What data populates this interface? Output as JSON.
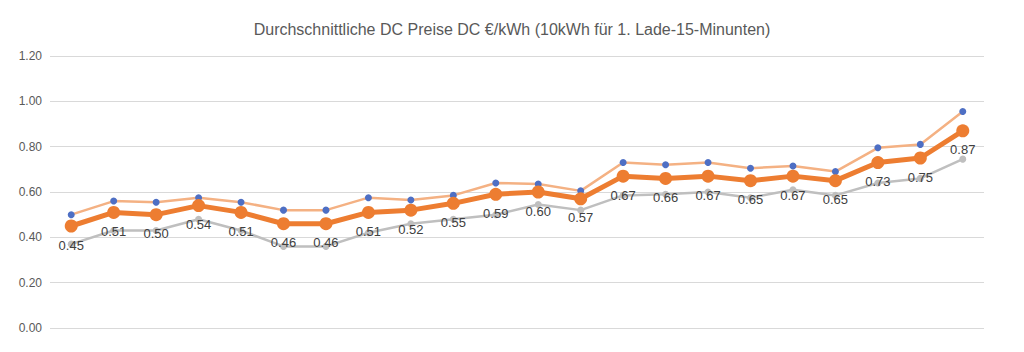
{
  "chart_data": {
    "type": "line",
    "title": "Durchschnittliche DC Preise DC €/kWh (10kWh für 1. Lade-15-Minunten)",
    "categories": [
      null,
      null,
      null,
      null,
      null,
      null,
      null,
      null,
      null,
      null,
      null,
      null,
      null,
      null,
      null,
      null,
      null,
      null,
      null,
      null,
      null,
      null
    ],
    "series": [
      {
        "color": "#f4b183",
        "marker": "circle",
        "line_style": "solid",
        "values": [
          0.5,
          0.56,
          0.555,
          0.575,
          0.555,
          0.52,
          0.52,
          0.575,
          0.565,
          0.585,
          0.64,
          0.635,
          0.605,
          0.73,
          0.72,
          0.73,
          0.705,
          0.715,
          0.69,
          0.795,
          0.81,
          0.955
        ]
      },
      {
        "color": "#bfbfbf",
        "marker": "circle",
        "line_style": "solid",
        "values": [
          0.37,
          0.43,
          0.43,
          0.48,
          0.43,
          0.36,
          0.36,
          0.42,
          0.46,
          0.48,
          0.5,
          0.545,
          0.52,
          0.585,
          0.59,
          0.6,
          0.575,
          0.61,
          0.585,
          0.64,
          0.66,
          0.745
        ]
      },
      {
        "color": "#ed7d31",
        "marker": "circle",
        "line_style": "solid",
        "values": [
          0.45,
          0.51,
          0.5,
          0.54,
          0.51,
          0.46,
          0.46,
          0.51,
          0.52,
          0.55,
          0.59,
          0.6,
          0.57,
          0.67,
          0.66,
          0.67,
          0.65,
          0.67,
          0.65,
          0.73,
          0.75,
          0.87
        ],
        "value_labels": [
          "0.45",
          "0.51",
          "0.50",
          "0.54",
          "0.51",
          "0.46",
          "0.46",
          "0.51",
          "0.52",
          "0.55",
          "0.59",
          "0.60",
          "0.57",
          "0.67",
          "0.66",
          "0.67",
          "0.65",
          "0.67",
          "0.65",
          "0.73",
          "0.75",
          "0.87"
        ]
      }
    ],
    "ylim": [
      0,
      1.2
    ],
    "yticks": [
      {
        "value": 0,
        "label": "0.00"
      },
      {
        "value": 0.2,
        "label": "0.20"
      },
      {
        "value": 0.4,
        "label": "0.40"
      },
      {
        "value": 0.6,
        "label": "0.60"
      },
      {
        "value": 0.8,
        "label": "0.80"
      },
      {
        "value": 1.0,
        "label": "1.00"
      },
      {
        "value": 1.2,
        "label": "1.20"
      }
    ],
    "grid": true,
    "data_labels": true,
    "tick_labels": "y"
  }
}
